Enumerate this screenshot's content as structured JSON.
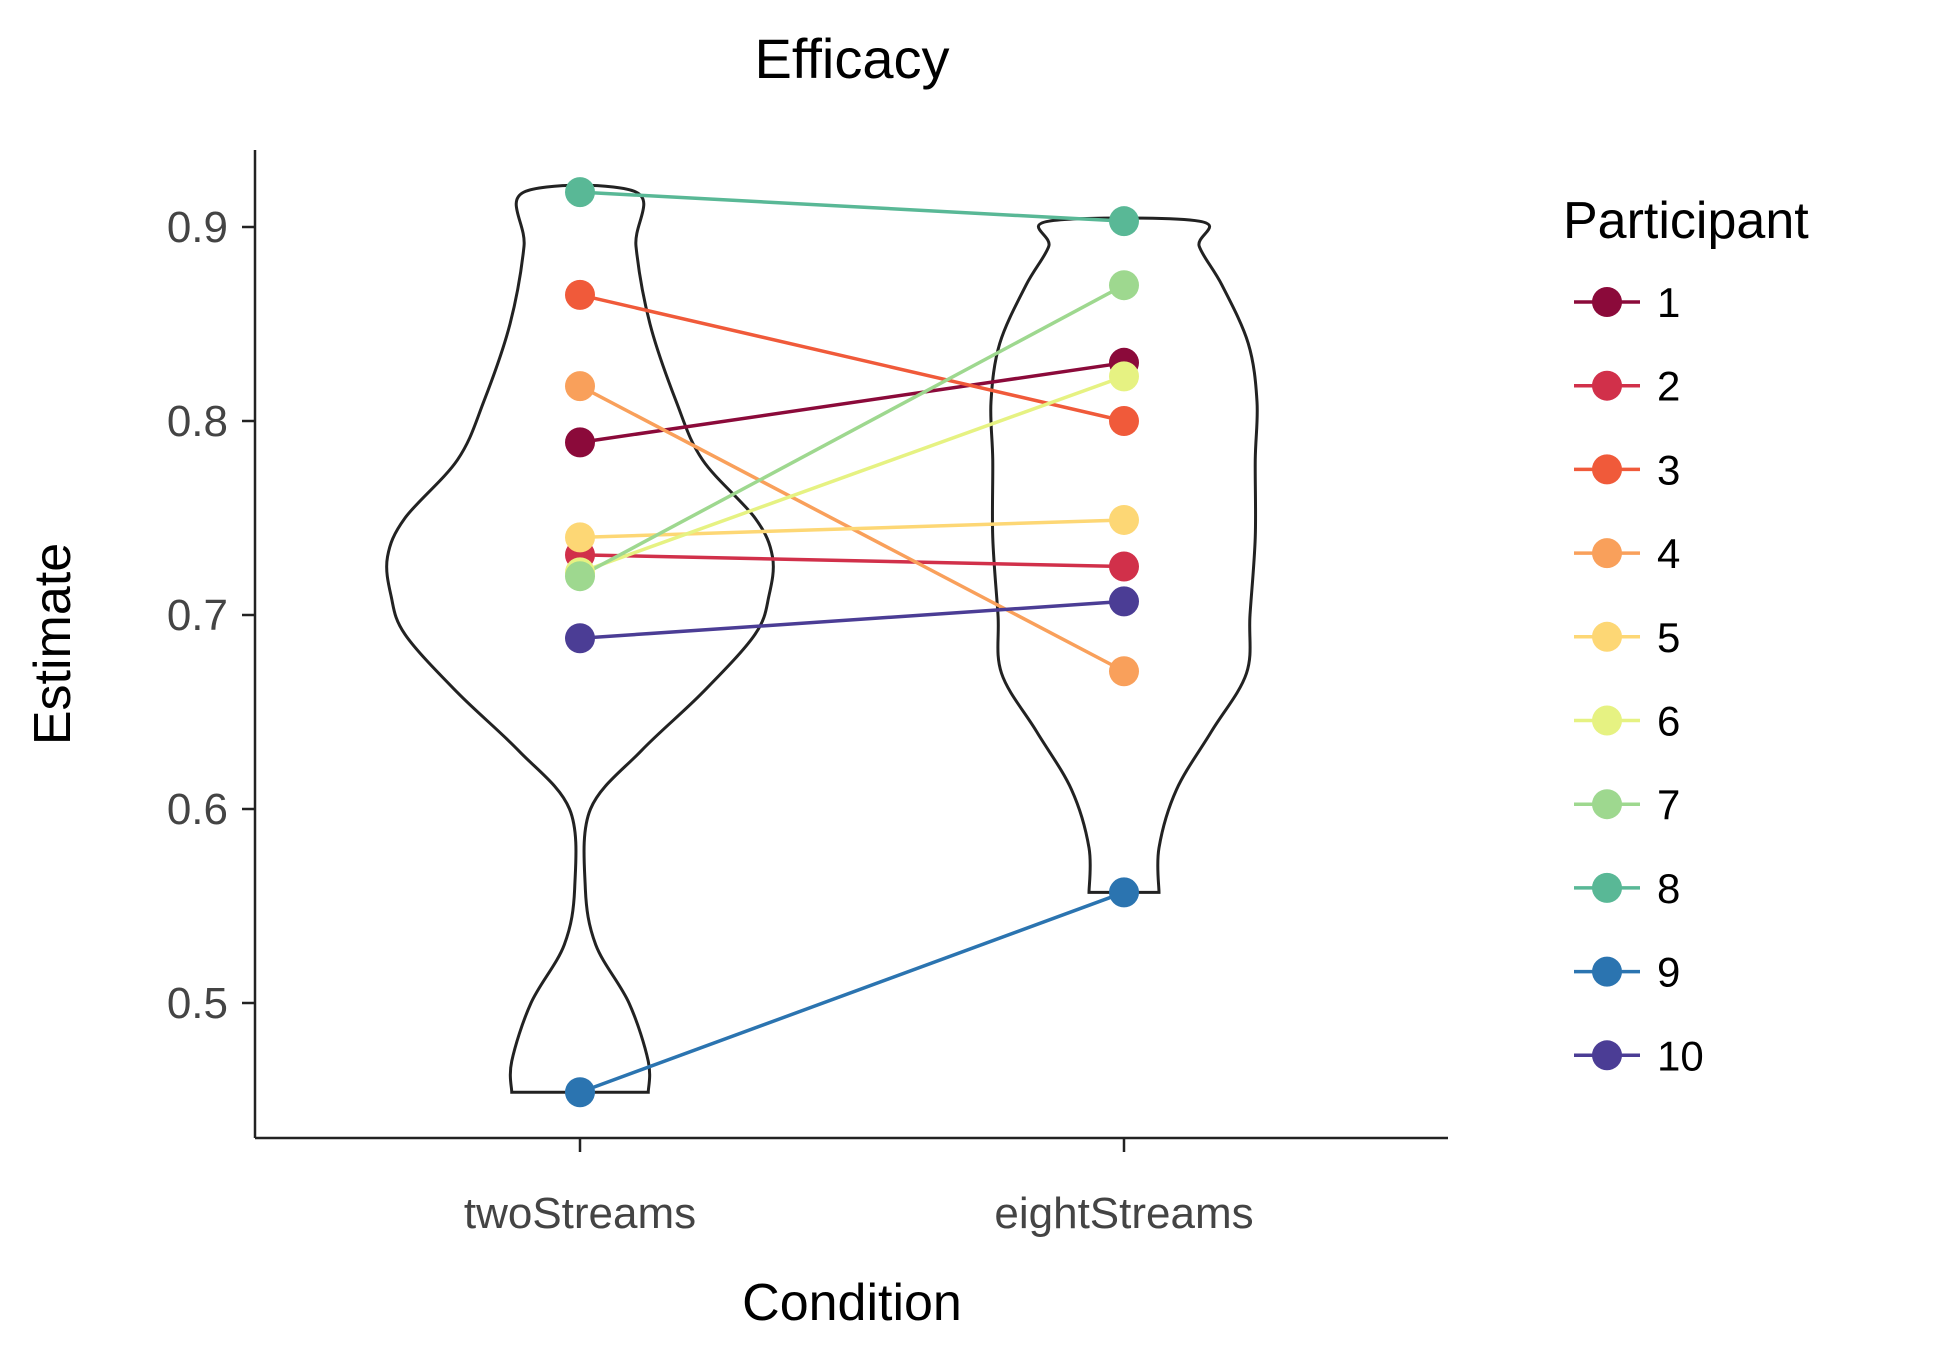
{
  "chart_data": {
    "type": "scatter",
    "subtype": "violin-with-paired-points",
    "title": "Efficacy",
    "xlabel": "Condition",
    "ylabel": "Estimate",
    "categories": [
      "twoStreams",
      "eightStreams"
    ],
    "ylim": [
      0.44,
      0.94
    ],
    "yticks": [
      0.5,
      0.6,
      0.7,
      0.8,
      0.9
    ],
    "ytick_labels": [
      "0.5",
      "0.6",
      "0.7",
      "0.8",
      "0.9"
    ],
    "grid": false,
    "legend": {
      "title": "Participant",
      "position": "right"
    },
    "series": [
      {
        "name": "1",
        "color": "#8B0A3A",
        "values": [
          0.789,
          0.83
        ]
      },
      {
        "name": "2",
        "color": "#D1304A",
        "values": [
          0.731,
          0.725
        ]
      },
      {
        "name": "3",
        "color": "#F05A3A",
        "values": [
          0.865,
          0.8
        ]
      },
      {
        "name": "4",
        "color": "#F9A05B",
        "values": [
          0.818,
          0.671
        ]
      },
      {
        "name": "5",
        "color": "#FDD775",
        "values": [
          0.74,
          0.749
        ]
      },
      {
        "name": "6",
        "color": "#E6F282",
        "values": [
          0.722,
          0.823
        ]
      },
      {
        "name": "7",
        "color": "#9ED88F",
        "values": [
          0.72,
          0.87
        ]
      },
      {
        "name": "8",
        "color": "#59B896",
        "values": [
          0.918,
          0.903
        ]
      },
      {
        "name": "9",
        "color": "#2B74B0",
        "values": [
          0.454,
          0.557
        ]
      },
      {
        "name": "10",
        "color": "#4B3D95",
        "values": [
          0.688,
          0.707
        ]
      }
    ],
    "violins": [
      {
        "category": "twoStreams",
        "ymin": 0.454,
        "ymax": 0.918,
        "profile": [
          [
            0.454,
            0.39
          ],
          [
            0.47,
            0.39
          ],
          [
            0.5,
            0.28
          ],
          [
            0.53,
            0.09
          ],
          [
            0.56,
            0.03
          ],
          [
            0.6,
            0.06
          ],
          [
            0.63,
            0.35
          ],
          [
            0.66,
            0.7
          ],
          [
            0.69,
            1.0
          ],
          [
            0.71,
            1.08
          ],
          [
            0.73,
            1.1
          ],
          [
            0.75,
            1.0
          ],
          [
            0.78,
            0.7
          ],
          [
            0.81,
            0.55
          ],
          [
            0.85,
            0.4
          ],
          [
            0.89,
            0.32
          ],
          [
            0.918,
            0.32
          ]
        ]
      },
      {
        "category": "eightStreams",
        "ymin": 0.557,
        "ymax": 0.903,
        "profile": [
          [
            0.557,
            0.2
          ],
          [
            0.58,
            0.2
          ],
          [
            0.61,
            0.3
          ],
          [
            0.64,
            0.5
          ],
          [
            0.67,
            0.7
          ],
          [
            0.7,
            0.72
          ],
          [
            0.74,
            0.75
          ],
          [
            0.78,
            0.75
          ],
          [
            0.81,
            0.76
          ],
          [
            0.84,
            0.71
          ],
          [
            0.87,
            0.56
          ],
          [
            0.89,
            0.43
          ],
          [
            0.903,
            0.43
          ]
        ]
      }
    ]
  }
}
